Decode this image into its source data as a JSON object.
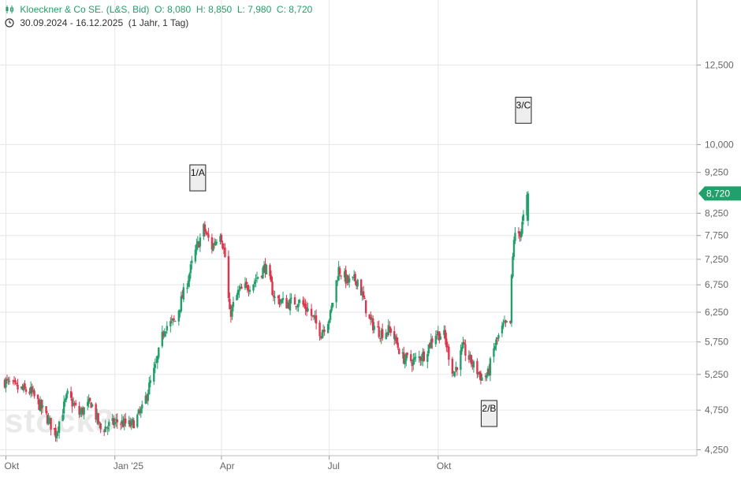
{
  "header": {
    "instrument": "Kloeckner & Co SE. (L&S, Bid)",
    "open_label": "O:",
    "open": "8,080",
    "high_label": "H:",
    "high": "8,850",
    "low_label": "L:",
    "low": "7,980",
    "close_label": "C:",
    "close": "8,720",
    "range": "30.09.2024 - 16.12.2025",
    "period": "(1 Jahr, 1 Tag)"
  },
  "watermark": "stock3",
  "colors": {
    "up": "#22a06b",
    "down": "#e0344e",
    "grid": "#e6e6e6",
    "axis_text": "#666666",
    "current_badge": "#22a06b"
  },
  "chart_data": {
    "type": "candlestick",
    "x_range": [
      "2024-09-30",
      "2025-12-16"
    ],
    "x_tick_labels": [
      "Okt",
      "Jan '25",
      "Apr",
      "Jul",
      "Okt"
    ],
    "x_tick_dates": [
      "2024-10-01",
      "2025-01-01",
      "2025-04-01",
      "2025-07-01",
      "2025-10-01"
    ],
    "y_ticks": [
      4.25,
      4.75,
      5.25,
      5.75,
      6.25,
      6.75,
      7.25,
      7.75,
      8.25,
      9.25,
      10.0,
      12.5
    ],
    "y_tick_labels": [
      "4,250",
      "4,750",
      "5,250",
      "5,750",
      "6,250",
      "6,750",
      "7,250",
      "7,750",
      "8,250",
      "9,250",
      "10,000",
      "12,500"
    ],
    "y_scale": "log",
    "ylim": [
      4.18,
      15.0
    ],
    "current_value": 8.72,
    "current_value_label": "8,720",
    "annotations": [
      {
        "label": "1/A",
        "date": "2025-03-12",
        "value": 9.1
      },
      {
        "label": "2/B",
        "date": "2025-11-13",
        "value": 4.7
      },
      {
        "label": "3/C",
        "date": "2025-12-12",
        "value": 11.0
      }
    ],
    "price_path": [
      [
        "2024-09-30",
        5.15
      ],
      [
        "2024-10-10",
        5.05
      ],
      [
        "2024-10-22",
        5.0
      ],
      [
        "2024-11-01",
        4.75
      ],
      [
        "2024-11-12",
        4.45
      ],
      [
        "2024-11-22",
        4.95
      ],
      [
        "2024-12-02",
        4.7
      ],
      [
        "2024-12-12",
        4.85
      ],
      [
        "2024-12-20",
        4.5
      ],
      [
        "2025-01-03",
        4.6
      ],
      [
        "2025-01-15",
        4.55
      ],
      [
        "2025-01-24",
        4.75
      ],
      [
        "2025-02-05",
        5.4
      ],
      [
        "2025-02-12",
        6.0
      ],
      [
        "2025-02-21",
        6.1
      ],
      [
        "2025-03-03",
        6.8
      ],
      [
        "2025-03-10",
        7.4
      ],
      [
        "2025-03-17",
        7.9
      ],
      [
        "2025-03-24",
        7.5
      ],
      [
        "2025-03-31",
        7.85
      ],
      [
        "2025-04-04",
        7.3
      ],
      [
        "2025-04-08",
        6.2
      ],
      [
        "2025-04-15",
        6.6
      ],
      [
        "2025-04-28",
        6.8
      ],
      [
        "2025-05-08",
        7.1
      ],
      [
        "2025-05-16",
        6.5
      ],
      [
        "2025-05-26",
        6.4
      ],
      [
        "2025-06-05",
        6.45
      ],
      [
        "2025-06-13",
        6.3
      ],
      [
        "2025-06-24",
        5.9
      ],
      [
        "2025-07-02",
        6.2
      ],
      [
        "2025-07-09",
        7.05
      ],
      [
        "2025-07-17",
        6.8
      ],
      [
        "2025-07-25",
        6.85
      ],
      [
        "2025-08-04",
        6.1
      ],
      [
        "2025-08-13",
        5.9
      ],
      [
        "2025-08-22",
        5.95
      ],
      [
        "2025-09-01",
        5.5
      ],
      [
        "2025-09-10",
        5.45
      ],
      [
        "2025-09-19",
        5.55
      ],
      [
        "2025-09-29",
        5.9
      ],
      [
        "2025-10-06",
        5.85
      ],
      [
        "2025-10-14",
        5.25
      ],
      [
        "2025-10-22",
        5.65
      ],
      [
        "2025-10-30",
        5.4
      ],
      [
        "2025-11-07",
        5.2
      ],
      [
        "2025-11-12",
        5.25
      ],
      [
        "2025-11-18",
        5.7
      ],
      [
        "2025-11-25",
        6.0
      ],
      [
        "2025-12-01",
        6.05
      ],
      [
        "2025-12-02",
        6.85
      ],
      [
        "2025-12-04",
        7.7
      ],
      [
        "2025-12-10",
        7.85
      ],
      [
        "2025-12-16",
        8.72
      ]
    ]
  }
}
